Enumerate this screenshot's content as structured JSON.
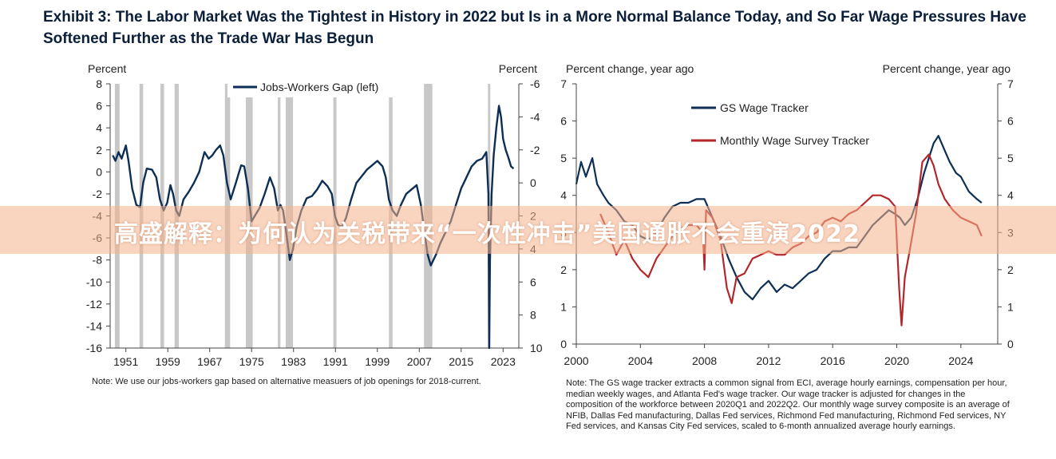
{
  "header": {
    "title_line1": "Exhibit 3: The Labor Market Was the Tightest in History in 2022 but Is in a More Normal Balance Today, and So Far Wage Pressures Have",
    "title_line2": "Softened Further as the Trade War Has Begun"
  },
  "banner": {
    "text": "高盛解释：为何认为关税带来“一次性冲击”美国通胀不会重演2022"
  },
  "colors": {
    "navy": "#0e2f55",
    "red": "#b5262b",
    "recession": "#c8c8c8"
  },
  "chart_data": [
    {
      "type": "line",
      "left_axis_label": "Percent",
      "right_axis_label": "Percent",
      "legend": "Jobs-Workers Gap (left)",
      "legend_position": "top-center",
      "xlim": [
        1948,
        2026
      ],
      "ylim_left": [
        -16,
        8
      ],
      "ylim_right_inverted": [
        -6,
        10
      ],
      "x_ticks": [
        "1951",
        "1959",
        "1967",
        "1975",
        "1983",
        "1991",
        "1999",
        "2007",
        "2015",
        "2023"
      ],
      "y_ticks_left": [
        "8",
        "6",
        "4",
        "2",
        "0",
        "-2",
        "-4",
        "-6",
        "-8",
        "-10",
        "-12",
        "-14",
        "-16"
      ],
      "y_ticks_right": [
        "-6",
        "-4",
        "-2",
        "0",
        "2",
        "4",
        "6",
        "8",
        "10"
      ],
      "recession_shading": [
        [
          1948.9,
          1949.8
        ],
        [
          1953.6,
          1954.3
        ],
        [
          1957.6,
          1958.3
        ],
        [
          1960.3,
          1961.1
        ],
        [
          1969.9,
          1970.9
        ],
        [
          1973.9,
          1975.2
        ],
        [
          1980.0,
          1980.5
        ],
        [
          1981.5,
          1982.9
        ],
        [
          1990.6,
          1991.2
        ],
        [
          2001.2,
          2001.9
        ],
        [
          2007.9,
          2009.5
        ],
        [
          2020.1,
          2020.4
        ]
      ],
      "series": [
        {
          "name": "Jobs-Workers Gap (left)",
          "x": [
            1948.5,
            1949.0,
            1949.6,
            1950.2,
            1951.0,
            1951.5,
            1952.2,
            1953.0,
            1953.7,
            1954.3,
            1955.0,
            1956.0,
            1956.8,
            1957.5,
            1958.2,
            1958.9,
            1959.5,
            1960.0,
            1960.6,
            1961.2,
            1962.0,
            1963.0,
            1964.0,
            1965.0,
            1966.0,
            1966.8,
            1967.5,
            1968.2,
            1969.0,
            1969.6,
            1970.3,
            1971.0,
            1972.0,
            1973.0,
            1973.6,
            1974.3,
            1975.0,
            1975.6,
            1976.5,
            1977.5,
            1978.5,
            1979.3,
            1980.0,
            1980.5,
            1981.0,
            1981.6,
            1982.3,
            1982.9,
            1983.6,
            1984.5,
            1985.5,
            1986.5,
            1987.5,
            1988.5,
            1989.5,
            1990.3,
            1990.9,
            1991.5,
            1992.2,
            1993.0,
            1994.0,
            1995.0,
            1996.0,
            1997.0,
            1998.0,
            1999.0,
            2000.0,
            2000.6,
            2001.2,
            2001.9,
            2002.7,
            2003.5,
            2004.5,
            2005.5,
            2006.5,
            2007.3,
            2008.0,
            2008.6,
            2009.2,
            2009.7,
            2010.2,
            2011.0,
            2012.0,
            2013.0,
            2014.0,
            2015.0,
            2016.0,
            2017.0,
            2018.0,
            2019.0,
            2019.8,
            2020.2,
            2020.35,
            2020.5,
            2020.8,
            2021.2,
            2021.7,
            2022.2,
            2022.6,
            2023.0,
            2023.5,
            2024.0,
            2024.5,
            2025.0
          ],
          "values": [
            1.5,
            1.0,
            1.8,
            1.2,
            2.4,
            1.0,
            -1.5,
            -3.0,
            -3.2,
            -1.0,
            0.3,
            0.2,
            -0.5,
            -2.5,
            -3.5,
            -2.8,
            -1.2,
            -2.0,
            -3.5,
            -4.0,
            -2.5,
            -1.8,
            -1.0,
            0.0,
            1.8,
            1.2,
            1.5,
            2.0,
            2.4,
            1.5,
            -1.0,
            -2.5,
            -1.0,
            0.6,
            0.5,
            -1.5,
            -4.5,
            -4.0,
            -3.3,
            -2.0,
            -0.5,
            -1.5,
            -3.5,
            -3.0,
            -3.5,
            -5.5,
            -8.0,
            -7.0,
            -5.0,
            -3.5,
            -2.4,
            -2.2,
            -1.6,
            -0.8,
            -1.3,
            -2.0,
            -4.0,
            -4.8,
            -5.0,
            -4.2,
            -2.5,
            -1.0,
            -0.4,
            0.2,
            0.6,
            1.0,
            0.5,
            -0.5,
            -2.5,
            -3.5,
            -4.0,
            -3.0,
            -2.0,
            -1.6,
            -1.2,
            -3.0,
            -5.5,
            -7.5,
            -8.5,
            -8.0,
            -7.5,
            -6.5,
            -5.5,
            -4.5,
            -3.0,
            -1.5,
            -0.5,
            0.5,
            1.0,
            1.2,
            1.8,
            -2.0,
            -16.0,
            -8.0,
            -2.0,
            1.5,
            4.0,
            6.0,
            5.0,
            3.0,
            2.0,
            1.3,
            0.5,
            0.3
          ]
        }
      ],
      "note": "Note: We use our jobs-workers gap based on alternative measuers of job openings for 2018-current."
    },
    {
      "type": "line",
      "left_axis_label": "Percent change, year ago",
      "right_axis_label": "Percent change, year ago",
      "legend_position": "top-left",
      "xlim": [
        2000,
        2026.3
      ],
      "ylim": [
        0,
        7
      ],
      "x_ticks": [
        "2000",
        "2004",
        "2008",
        "2012",
        "2016",
        "2020",
        "2024"
      ],
      "y_ticks": [
        "7",
        "6",
        "5",
        "4",
        "3",
        "2",
        "1",
        "0"
      ],
      "series": [
        {
          "name": "GS Wage Tracker",
          "color": "#0e2f55",
          "x": [
            2000.0,
            2000.3,
            2000.6,
            2001.0,
            2001.3,
            2001.7,
            2002.0,
            2002.5,
            2003.0,
            2003.5,
            2004.0,
            2004.5,
            2005.0,
            2005.5,
            2006.0,
            2006.5,
            2007.0,
            2007.5,
            2008.0,
            2008.5,
            2009.0,
            2009.5,
            2010.0,
            2010.5,
            2011.0,
            2011.5,
            2012.0,
            2012.5,
            2013.0,
            2013.5,
            2014.0,
            2014.5,
            2015.0,
            2015.5,
            2016.0,
            2016.5,
            2017.0,
            2017.5,
            2018.0,
            2018.5,
            2019.0,
            2019.5,
            2019.9,
            2020.2,
            2020.5,
            2020.9,
            2021.3,
            2021.7,
            2022.0,
            2022.3,
            2022.6,
            2023.0,
            2023.3,
            2023.7,
            2024.0,
            2024.5,
            2025.0,
            2025.3
          ],
          "values": [
            4.3,
            4.9,
            4.5,
            5.0,
            4.3,
            4.0,
            3.8,
            3.6,
            3.3,
            3.2,
            2.9,
            2.8,
            3.0,
            3.4,
            3.7,
            3.8,
            3.8,
            3.9,
            3.9,
            3.4,
            2.9,
            2.3,
            1.8,
            1.4,
            1.2,
            1.5,
            1.7,
            1.4,
            1.6,
            1.5,
            1.7,
            1.9,
            2.0,
            2.3,
            2.5,
            2.5,
            2.6,
            2.6,
            2.9,
            3.2,
            3.4,
            3.6,
            3.5,
            3.4,
            3.2,
            3.4,
            3.9,
            4.6,
            5.0,
            5.4,
            5.6,
            5.2,
            4.9,
            4.6,
            4.5,
            4.1,
            3.9,
            3.8
          ]
        },
        {
          "name": "Monthly Wage Survey Tracker",
          "color": "#b5262b",
          "x": [
            2001.5,
            2002.0,
            2002.5,
            2003.0,
            2003.5,
            2004.0,
            2004.5,
            2005.0,
            2005.5,
            2006.0,
            2006.5,
            2007.0,
            2007.5,
            2007.9,
            2008.0,
            2008.1,
            2008.5,
            2009.0,
            2009.4,
            2009.7,
            2010.0,
            2010.5,
            2011.0,
            2011.5,
            2012.0,
            2012.5,
            2013.0,
            2013.5,
            2014.0,
            2014.5,
            2015.0,
            2015.5,
            2016.0,
            2016.5,
            2017.0,
            2017.5,
            2018.0,
            2018.5,
            2019.0,
            2019.5,
            2019.9,
            2020.15,
            2020.3,
            2020.5,
            2020.8,
            2021.2,
            2021.6,
            2022.0,
            2022.3,
            2022.6,
            2023.0,
            2023.5,
            2024.0,
            2024.5,
            2025.0,
            2025.3
          ],
          "values": [
            3.5,
            3.0,
            2.4,
            2.8,
            2.3,
            2.0,
            1.8,
            2.3,
            2.6,
            2.9,
            3.1,
            3.2,
            3.2,
            3.0,
            2.0,
            3.6,
            3.4,
            2.8,
            1.5,
            1.1,
            1.8,
            1.9,
            2.3,
            2.4,
            2.5,
            2.4,
            2.4,
            2.6,
            2.7,
            2.9,
            3.0,
            3.3,
            3.4,
            3.3,
            3.5,
            3.6,
            3.8,
            4.0,
            4.0,
            3.9,
            3.7,
            1.5,
            0.5,
            1.8,
            2.5,
            3.5,
            4.9,
            5.1,
            4.8,
            4.3,
            3.9,
            3.6,
            3.4,
            3.3,
            3.2,
            2.9
          ]
        }
      ],
      "note": "Note: The GS wage tracker extracts a common signal from ECI, average hourly earnings, compensation per hour, median weekly wages, and Atlanta Fed's wage tracker. Our wage tracker is adjusted for changes in the composition of the workforce between 2020Q1 and 2022Q2. Our monthly wage survey composite is an average of NFIB, Dallas Fed manufacturing, Dallas Fed services, Richmond Fed manufacturing, Richmond Fed services, NY Fed services, and Kansas City Fed services, scaled to 6-month annualized average hourly earnings."
    }
  ]
}
